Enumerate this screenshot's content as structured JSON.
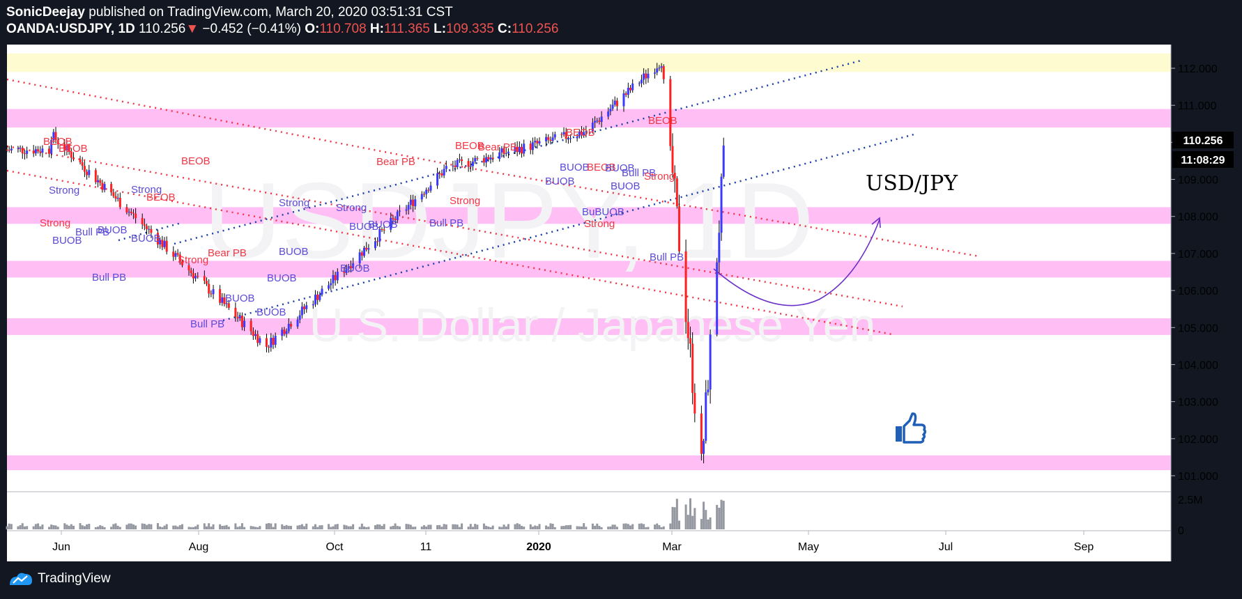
{
  "header": {
    "publisher": "SonicDeejay",
    "published_text": "published on TradingView.com, March 20, 2020 03:51:31 CST",
    "symbol": "OANDA:USDJPY, 1D",
    "last": "110.256",
    "arrow": "▼",
    "change": "−0.452 (−0.41%)",
    "o_label": "O:",
    "o_value": "110.708",
    "h_label": "H:",
    "h_value": "111.365",
    "l_label": "L:",
    "l_value": "109.335",
    "c_label": "C:",
    "c_value": "110.256"
  },
  "price_tag": "110.256",
  "countdown_tag": "11:08:29",
  "annotation_title": "USD/JPY",
  "watermark": {
    "symbol": "USDJPY, 1D",
    "name": "U.S. Dollar / Japanese Yen"
  },
  "footer": {
    "brand": "TradingView"
  },
  "colors": {
    "up": "#3a3aff",
    "down": "#ff2020",
    "zone": "#ffbff5",
    "top_zone": "#fffbd0",
    "red_line": "#f23645",
    "blue_line": "#1a3ea8"
  },
  "chart_data": {
    "type": "candlestick",
    "y_axis": {
      "min": 101,
      "max": 112,
      "ticks": [
        "101.000",
        "102.000",
        "103.000",
        "104.000",
        "105.000",
        "106.000",
        "107.000",
        "108.000",
        "109.000",
        "110.000",
        "111.000",
        "112.000"
      ]
    },
    "x_axis": {
      "ticks": [
        "Jun",
        "Aug",
        "Oct",
        "11",
        "2020",
        "Mar",
        "May",
        "Jul",
        "Sep"
      ]
    },
    "volume_axis": {
      "ticks": [
        "2.5M",
        "0"
      ]
    },
    "zones": [
      {
        "type": "top",
        "from": 111.9,
        "to": 112.4
      },
      {
        "type": "pink",
        "from": 110.4,
        "to": 110.9
      },
      {
        "type": "pink",
        "from": 107.8,
        "to": 108.25
      },
      {
        "type": "pink",
        "from": 106.35,
        "to": 106.8
      },
      {
        "type": "pink",
        "from": 104.8,
        "to": 105.25
      },
      {
        "type": "pink",
        "from": 101.15,
        "to": 101.55
      }
    ],
    "key_prices": [
      {
        "date": "2019-05-21",
        "value": 110.2
      },
      {
        "date": "2019-08-26",
        "value": 104.5
      },
      {
        "date": "2019-11-15",
        "value": 109.3
      },
      {
        "date": "2020-01-17",
        "value": 110.3
      },
      {
        "date": "2020-02-20",
        "value": 112.2
      },
      {
        "date": "2020-03-09",
        "value": 101.2
      },
      {
        "date": "2020-03-20",
        "value": 110.256
      }
    ],
    "labels": [
      {
        "text": "BEOB",
        "color": "red"
      },
      {
        "text": "Strong",
        "color": "blue"
      },
      {
        "text": "BUOB",
        "color": "blue"
      },
      {
        "text": "Bull PB",
        "color": "blue"
      },
      {
        "text": "Bear PB",
        "color": "red"
      },
      {
        "text": "Strong",
        "color": "red"
      }
    ]
  }
}
